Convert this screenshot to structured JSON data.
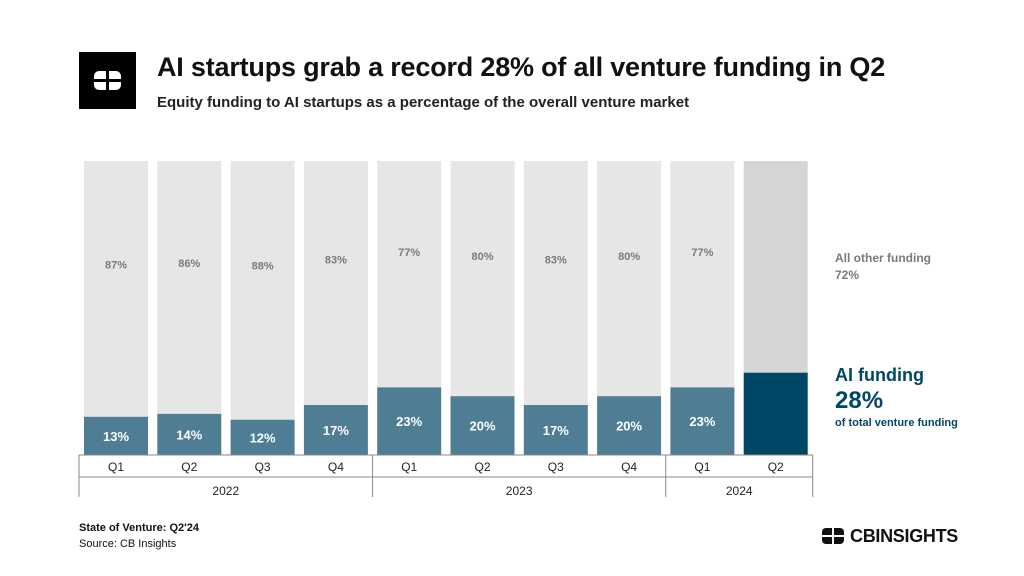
{
  "header": {
    "title": "AI startups grab a record 28% of all venture funding in Q2",
    "subtitle": "Equity funding to AI startups as a percentage of the overall venture market"
  },
  "chart_data": {
    "type": "bar",
    "stacked": true,
    "categories": [
      "Q1",
      "Q2",
      "Q3",
      "Q4",
      "Q1",
      "Q2",
      "Q3",
      "Q4",
      "Q1",
      "Q2"
    ],
    "groups": [
      {
        "label": "2022",
        "count": 4
      },
      {
        "label": "2023",
        "count": 4
      },
      {
        "label": "2024",
        "count": 2
      }
    ],
    "series": [
      {
        "values": [
          13,
          14,
          12,
          17,
          23,
          20,
          17,
          20,
          23,
          28
        ],
        "labels": [
          "13%",
          "14%",
          "12%",
          "17%",
          "23%",
          "20%",
          "17%",
          "20%",
          "23%",
          ""
        ]
      },
      {
        "values": [
          87,
          86,
          88,
          83,
          77,
          80,
          83,
          80,
          77,
          72
        ],
        "labels": [
          "87%",
          "86%",
          "88%",
          "83%",
          "77%",
          "80%",
          "83%",
          "80%",
          "77%",
          ""
        ]
      }
    ],
    "ylim": [
      0,
      100
    ],
    "colors": {
      "ai": "#4f7d93",
      "ai_highlight": "#004765",
      "other": "#e6e6e6",
      "other_highlight": "#d5d5d5",
      "other_label": "#7a7a7a"
    },
    "annotations": {
      "other_label": "All other funding",
      "other_value": "72%",
      "ai_label": "AI funding",
      "ai_value": "28%",
      "ai_caption": "of total venture funding"
    }
  },
  "footer": {
    "report": "State of Venture: Q2'24",
    "source": "Source: CB Insights"
  },
  "brand": {
    "name": "CBINSIGHTS",
    "icon": "cb-logo-icon"
  }
}
